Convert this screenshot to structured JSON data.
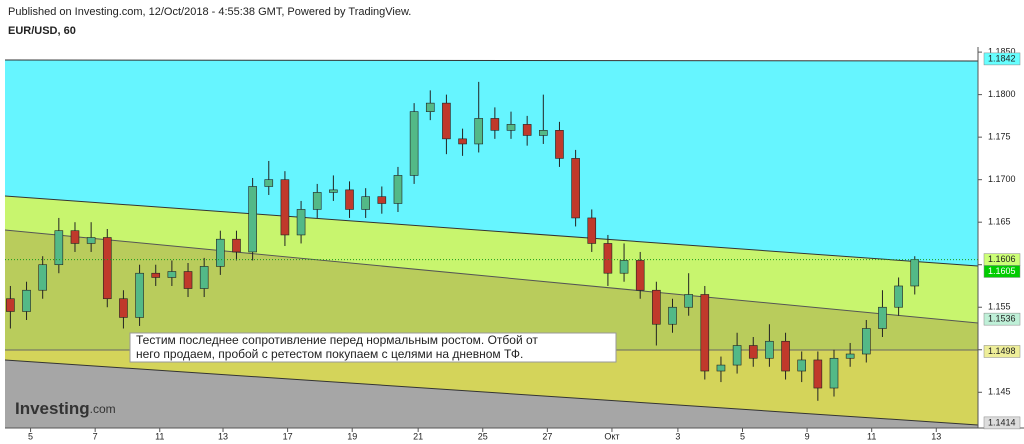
{
  "chart_data": {
    "type": "candlestick",
    "subtitle": "Published on Investing.com, 12/Oct/2018 - 4:55:38 GMT, Powered by TradingView.",
    "title": "EUR/USD, 60",
    "annotation": [
      "Тестим последнее сопротивление перед нормальным ростом. Отбой от",
      "него продаем, пробой с ретестом покупаем с целями на дневном ТФ."
    ],
    "watermark": [
      "Investing",
      ".com"
    ],
    "up_color": "#53b987",
    "down_color": "#c0392b",
    "x": [
      4,
      16,
      28,
      40,
      52,
      64,
      76,
      88,
      100,
      112,
      124,
      136,
      148,
      160,
      172,
      184,
      196,
      208,
      220,
      232,
      244,
      256,
      268,
      280,
      292,
      304,
      316,
      328,
      340,
      352,
      364,
      376,
      388,
      400,
      412,
      424,
      436,
      448,
      460,
      472,
      484,
      496,
      508,
      520,
      532,
      544,
      556,
      568,
      580,
      592,
      604,
      616,
      628,
      640,
      652,
      664,
      676
    ],
    "open": [
      1.156,
      1.1545,
      1.157,
      1.16,
      1.164,
      1.1625,
      1.1632,
      1.156,
      1.1538,
      1.159,
      1.1585,
      1.1592,
      1.1572,
      1.1598,
      1.163,
      1.1615,
      1.1692,
      1.17,
      1.1635,
      1.1665,
      1.1685,
      1.1688,
      1.1665,
      1.168,
      1.1672,
      1.1705,
      1.178,
      1.179,
      1.1748,
      1.1742,
      1.1772,
      1.1758,
      1.1765,
      1.1752,
      1.1758,
      1.1725,
      1.1655,
      1.1625,
      1.159,
      1.1605,
      1.157,
      1.153,
      1.155,
      1.1565,
      1.1475,
      1.1482,
      1.1505,
      1.149,
      1.151,
      1.1475,
      1.1488,
      1.1455,
      1.149,
      1.1495,
      1.1525,
      1.155,
      1.1575
    ],
    "high": [
      1.1575,
      1.158,
      1.161,
      1.1655,
      1.165,
      1.165,
      1.1642,
      1.157,
      1.16,
      1.16,
      1.1605,
      1.1602,
      1.1608,
      1.164,
      1.164,
      1.1702,
      1.1722,
      1.171,
      1.1675,
      1.1695,
      1.1705,
      1.1698,
      1.169,
      1.1692,
      1.1715,
      1.179,
      1.1805,
      1.18,
      1.176,
      1.1815,
      1.1785,
      1.178,
      1.1775,
      1.18,
      1.1768,
      1.1735,
      1.1665,
      1.1635,
      1.1625,
      1.1615,
      1.158,
      1.156,
      1.159,
      1.1575,
      1.1492,
      1.152,
      1.1515,
      1.153,
      1.152,
      1.1498,
      1.1498,
      1.15,
      1.1508,
      1.1535,
      1.157,
      1.1585,
      1.161
    ],
    "low": [
      1.1525,
      1.1535,
      1.156,
      1.159,
      1.1615,
      1.1615,
      1.155,
      1.1525,
      1.1528,
      1.1575,
      1.1575,
      1.1562,
      1.1562,
      1.1588,
      1.1605,
      1.1605,
      1.1682,
      1.1622,
      1.1625,
      1.1655,
      1.1675,
      1.1655,
      1.1655,
      1.166,
      1.1662,
      1.1695,
      1.177,
      1.173,
      1.1728,
      1.1732,
      1.1748,
      1.1748,
      1.174,
      1.1742,
      1.1715,
      1.1645,
      1.1615,
      1.1575,
      1.158,
      1.156,
      1.1505,
      1.152,
      1.154,
      1.1465,
      1.1462,
      1.1472,
      1.148,
      1.148,
      1.1465,
      1.1462,
      1.144,
      1.1445,
      1.148,
      1.1485,
      1.1515,
      1.154,
      1.1565
    ],
    "close": [
      1.1545,
      1.157,
      1.16,
      1.164,
      1.1625,
      1.1632,
      1.156,
      1.1538,
      1.159,
      1.1585,
      1.1592,
      1.1572,
      1.1598,
      1.163,
      1.1615,
      1.1692,
      1.17,
      1.1635,
      1.1665,
      1.1685,
      1.1688,
      1.1665,
      1.168,
      1.1672,
      1.1705,
      1.178,
      1.179,
      1.1748,
      1.1742,
      1.1772,
      1.1758,
      1.1765,
      1.1752,
      1.1758,
      1.1725,
      1.1655,
      1.1625,
      1.159,
      1.1605,
      1.157,
      1.153,
      1.155,
      1.1565,
      1.1475,
      1.1482,
      1.1505,
      1.149,
      1.151,
      1.1475,
      1.1488,
      1.1455,
      1.149,
      1.1495,
      1.1525,
      1.155,
      1.1575,
      1.1606
    ],
    "xlim": [
      0,
      723
    ],
    "xticks": [
      {
        "value": 19,
        "label": "5"
      },
      {
        "value": 67,
        "label": "7"
      },
      {
        "value": 115,
        "label": "11"
      },
      {
        "value": 162,
        "label": "13"
      },
      {
        "value": 210,
        "label": "17"
      },
      {
        "value": 258,
        "label": "19"
      },
      {
        "value": 307,
        "label": "21"
      },
      {
        "value": 355,
        "label": "25"
      },
      {
        "value": 403,
        "label": "27"
      },
      {
        "value": 451,
        "label": "Окт"
      },
      {
        "value": 500,
        "label": "3"
      },
      {
        "value": 548,
        "label": "5"
      },
      {
        "value": 596,
        "label": "9"
      },
      {
        "value": 644,
        "label": "11"
      },
      {
        "value": 692,
        "label": "13"
      }
    ],
    "ylim": [
      1.1408,
      1.1856
    ],
    "yticks": [
      {
        "value": 1.185,
        "label": "1.1850"
      },
      {
        "value": 1.18,
        "label": "1.1800"
      },
      1.175,
      {
        "value": 1.17,
        "label": "1.1700"
      },
      1.165,
      {
        "value": 1.16,
        "label": "1.1600"
      },
      1.155,
      {
        "value": 1.15,
        "label": "1.1500"
      },
      1.145
    ],
    "price_labels": [
      1.1842,
      1.1606,
      1.1605,
      1.1536,
      1.1498,
      1.1414
    ],
    "price_label_colors": [
      "#66ffff",
      "#ccff77",
      "#00cc00",
      "#bff0d8",
      "#eeee99",
      "#dddddd"
    ]
  }
}
